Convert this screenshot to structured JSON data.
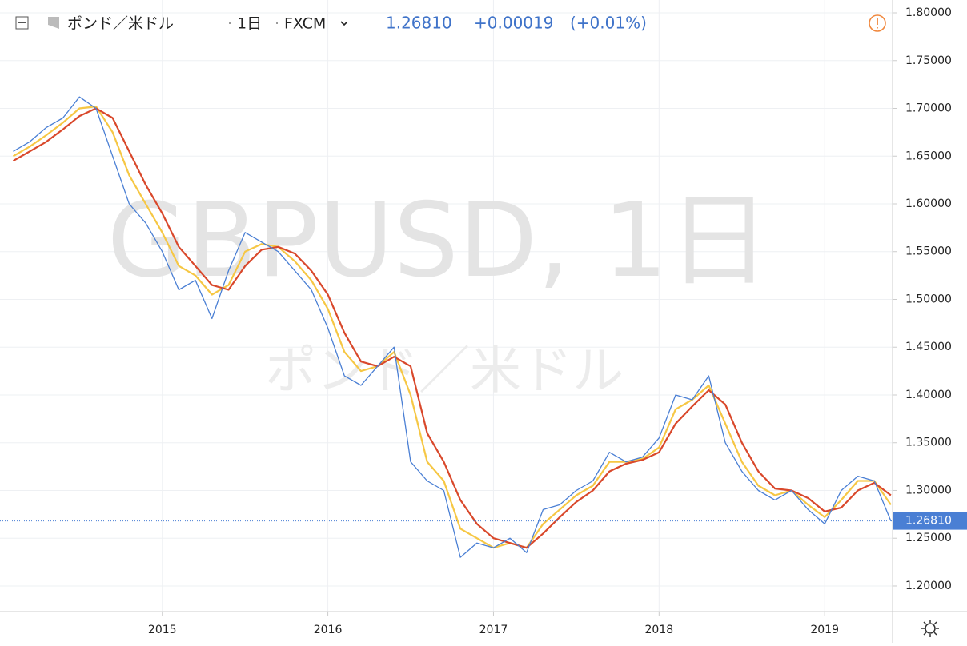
{
  "header": {
    "symbol": "ポンド／米ドル",
    "interval": "1日",
    "exchange": "FXCM",
    "price": {
      "value": 1.2681,
      "label": "1.26810"
    },
    "change": "+0.00019",
    "change_pct": "(+0.01%)"
  },
  "watermark": {
    "line1": "GBPUSD, 1日",
    "line2": "ポンド／米ドル"
  },
  "chart_data": {
    "type": "line",
    "x": [
      2014.1,
      2014.2,
      2014.3,
      2014.4,
      2014.5,
      2014.6,
      2014.7,
      2014.8,
      2014.9,
      2015.0,
      2015.1,
      2015.2,
      2015.3,
      2015.4,
      2015.5,
      2015.6,
      2015.7,
      2015.8,
      2015.9,
      2016.0,
      2016.1,
      2016.2,
      2016.3,
      2016.4,
      2016.5,
      2016.6,
      2016.7,
      2016.8,
      2016.9,
      2017.0,
      2017.1,
      2017.2,
      2017.3,
      2017.4,
      2017.5,
      2017.6,
      2017.7,
      2017.8,
      2017.9,
      2018.0,
      2018.1,
      2018.2,
      2018.3,
      2018.4,
      2018.5,
      2018.6,
      2018.7,
      2018.8,
      2018.9,
      2019.0,
      2019.1,
      2019.2,
      2019.3,
      2019.4
    ],
    "series": [
      {
        "color": "#f6c744",
        "values": [
          1.65,
          1.66,
          1.672,
          1.685,
          1.7,
          1.702,
          1.675,
          1.63,
          1.6,
          1.57,
          1.535,
          1.525,
          1.505,
          1.515,
          1.55,
          1.558,
          1.555,
          1.54,
          1.52,
          1.49,
          1.445,
          1.425,
          1.43,
          1.445,
          1.4,
          1.33,
          1.31,
          1.26,
          1.25,
          1.24,
          1.245,
          1.24,
          1.265,
          1.28,
          1.295,
          1.305,
          1.33,
          1.33,
          1.333,
          1.345,
          1.385,
          1.395,
          1.41,
          1.37,
          1.33,
          1.305,
          1.295,
          1.3,
          1.285,
          1.272,
          1.29,
          1.31,
          1.31,
          1.285
        ]
      },
      {
        "color": "#d9482b",
        "values": [
          1.645,
          1.655,
          1.665,
          1.678,
          1.692,
          1.7,
          1.69,
          1.655,
          1.62,
          1.59,
          1.555,
          1.535,
          1.515,
          1.51,
          1.535,
          1.552,
          1.555,
          1.548,
          1.53,
          1.505,
          1.465,
          1.435,
          1.43,
          1.44,
          1.43,
          1.36,
          1.33,
          1.29,
          1.265,
          1.25,
          1.245,
          1.24,
          1.255,
          1.272,
          1.288,
          1.3,
          1.32,
          1.328,
          1.332,
          1.34,
          1.37,
          1.388,
          1.405,
          1.39,
          1.35,
          1.32,
          1.302,
          1.3,
          1.292,
          1.278,
          1.282,
          1.3,
          1.308,
          1.295
        ]
      },
      {
        "color": "#4a7fd4",
        "values": [
          1.655,
          1.665,
          1.68,
          1.69,
          1.712,
          1.7,
          1.65,
          1.6,
          1.58,
          1.55,
          1.51,
          1.52,
          1.48,
          1.53,
          1.57,
          1.56,
          1.55,
          1.53,
          1.51,
          1.47,
          1.42,
          1.41,
          1.43,
          1.45,
          1.33,
          1.31,
          1.3,
          1.23,
          1.245,
          1.24,
          1.25,
          1.235,
          1.28,
          1.285,
          1.3,
          1.31,
          1.34,
          1.33,
          1.335,
          1.355,
          1.4,
          1.395,
          1.42,
          1.35,
          1.32,
          1.3,
          1.29,
          1.3,
          1.28,
          1.265,
          1.3,
          1.315,
          1.31,
          1.268
        ]
      }
    ],
    "xlim": [
      2014.02,
      2019.41
    ],
    "xticks": [
      2015,
      2016,
      2017,
      2018,
      2019
    ],
    "ylim": [
      1.1732,
      1.8134
    ],
    "yticks": [
      {
        "value": 1.2,
        "label": "1.20000"
      },
      {
        "value": 1.25,
        "label": "1.25000"
      },
      {
        "value": 1.3,
        "label": "1.30000"
      },
      {
        "value": 1.35,
        "label": "1.35000"
      },
      {
        "value": 1.4,
        "label": "1.40000"
      },
      {
        "value": 1.45,
        "label": "1.45000"
      },
      {
        "value": 1.5,
        "label": "1.50000"
      },
      {
        "value": 1.55,
        "label": "1.55000"
      },
      {
        "value": 1.6,
        "label": "1.60000"
      },
      {
        "value": 1.65,
        "label": "1.65000"
      },
      {
        "value": 1.7,
        "label": "1.70000"
      },
      {
        "value": 1.75,
        "label": "1.75000"
      },
      {
        "value": 1.8,
        "label": "1.80000"
      }
    ],
    "grid": true
  }
}
